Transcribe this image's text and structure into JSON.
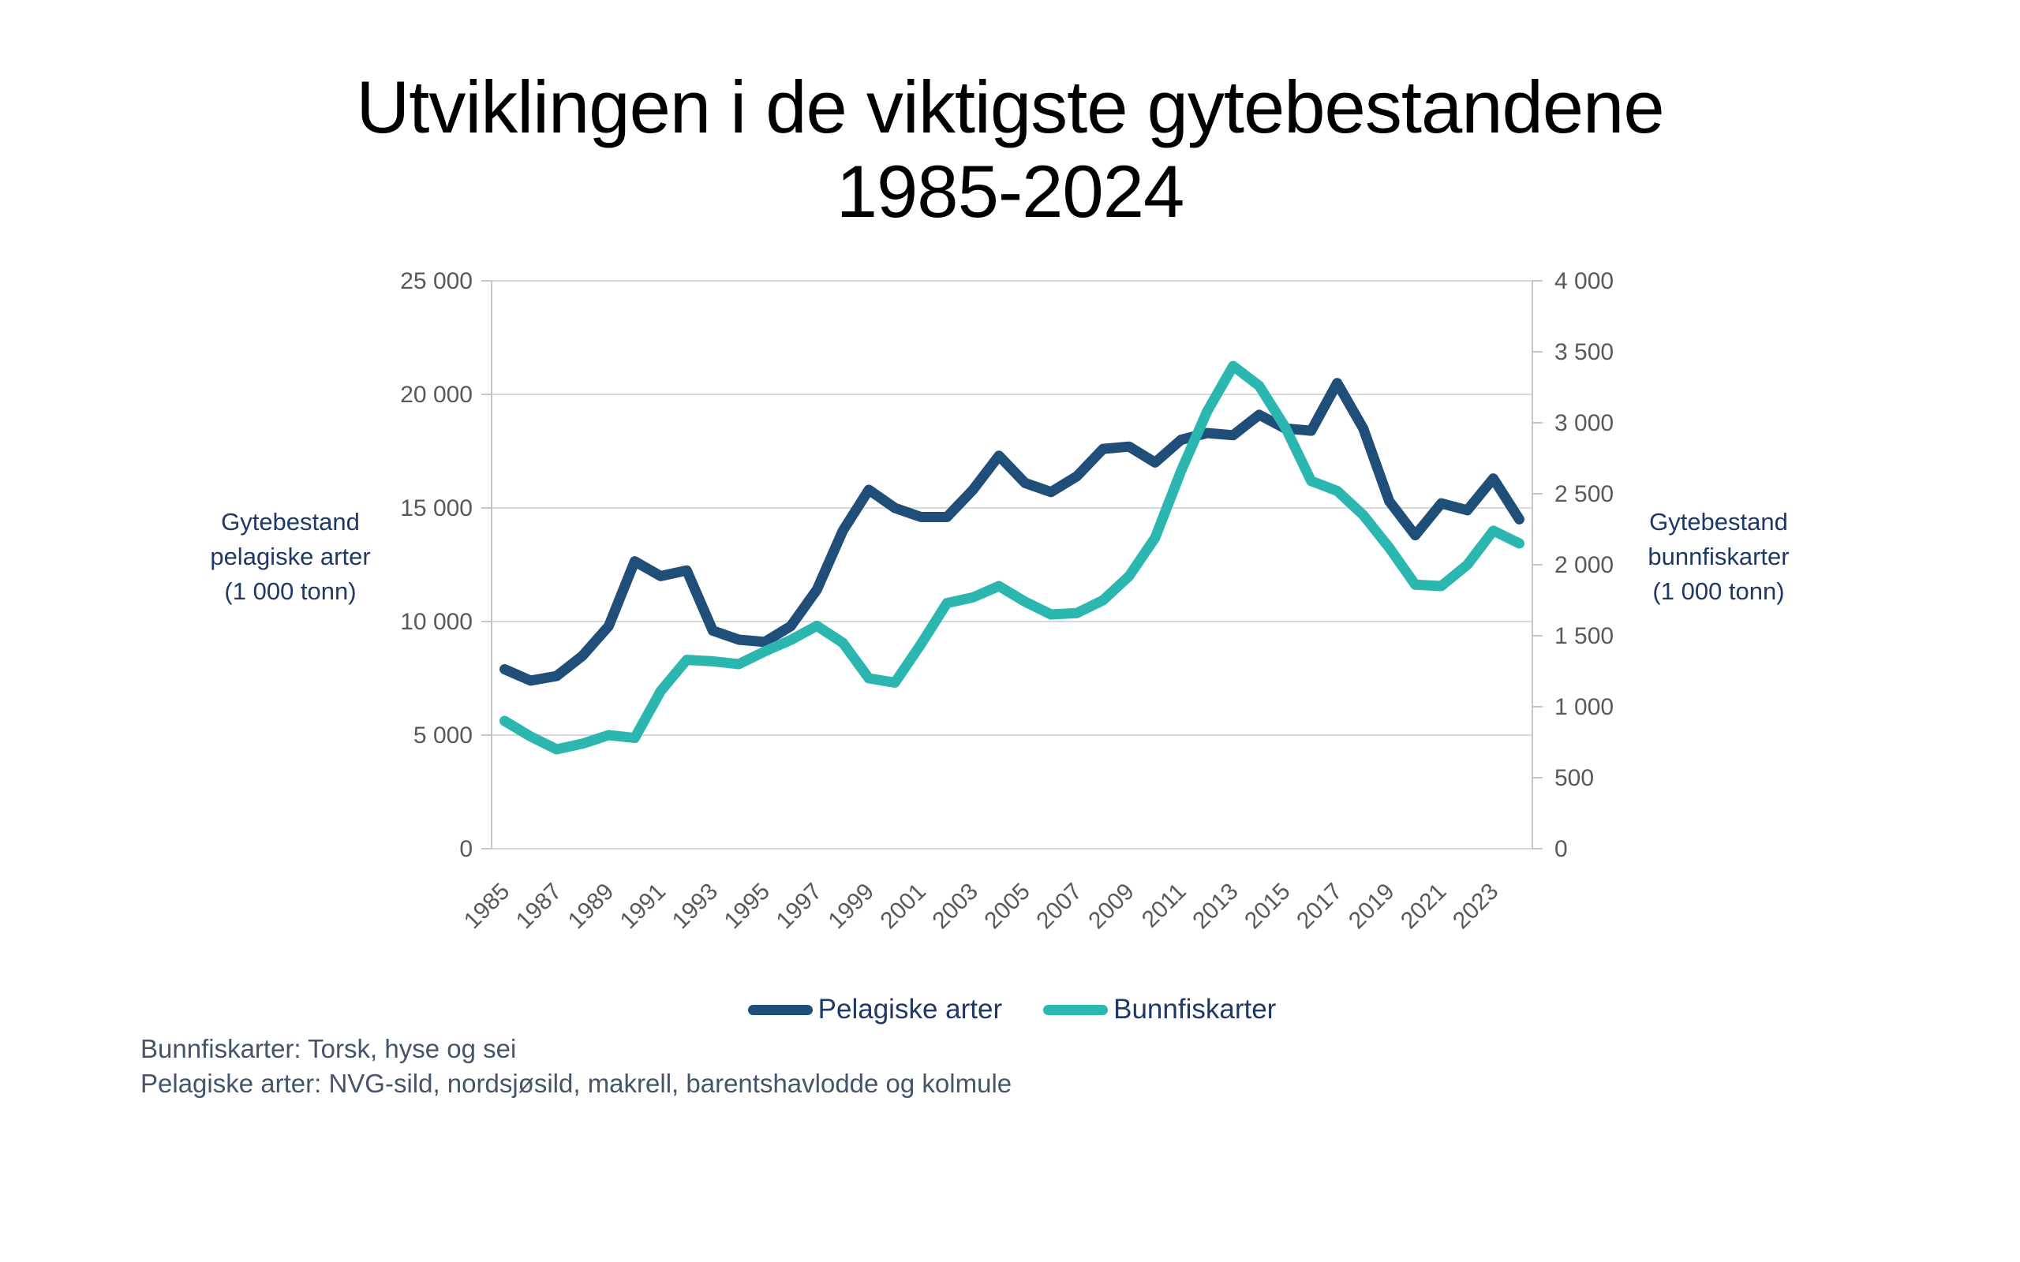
{
  "title": {
    "line1": "Utviklingen i de viktigste gytebestandene",
    "line2": "1985-2024"
  },
  "chart_data": {
    "type": "line",
    "x": [
      1985,
      1986,
      1987,
      1988,
      1989,
      1990,
      1991,
      1992,
      1993,
      1994,
      1995,
      1996,
      1997,
      1998,
      1999,
      2000,
      2001,
      2002,
      2003,
      2004,
      2005,
      2006,
      2007,
      2008,
      2009,
      2010,
      2011,
      2012,
      2013,
      2014,
      2015,
      2016,
      2017,
      2018,
      2019,
      2020,
      2021,
      2022,
      2023,
      2024
    ],
    "x_tick_labels": [
      "1985",
      "1987",
      "1989",
      "1991",
      "1993",
      "1995",
      "1997",
      "1999",
      "2001",
      "2003",
      "2005",
      "2007",
      "2009",
      "2011",
      "2013",
      "2015",
      "2017",
      "2019",
      "2021",
      "2023"
    ],
    "series": [
      {
        "name": "Pelagiske arter",
        "axis": "left",
        "color": "#1f4e79",
        "values": [
          7900,
          7400,
          7600,
          8500,
          9800,
          12650,
          12000,
          12250,
          9600,
          9200,
          9100,
          9800,
          11400,
          14000,
          15800,
          15000,
          14600,
          14600,
          15800,
          17300,
          16100,
          15700,
          16400,
          17600,
          17700,
          17000,
          18000,
          18300,
          18200,
          19100,
          18500,
          18400,
          20500,
          18500,
          15300,
          13800,
          15200,
          14900,
          16300,
          14500
        ]
      },
      {
        "name": "Bunnfiskarter",
        "axis": "right",
        "color": "#2bb7b0",
        "values": [
          900,
          790,
          700,
          740,
          800,
          780,
          1110,
          1330,
          1320,
          1300,
          1390,
          1470,
          1570,
          1450,
          1200,
          1170,
          1440,
          1730,
          1770,
          1850,
          1740,
          1650,
          1660,
          1750,
          1920,
          2190,
          2660,
          3080,
          3400,
          3260,
          2970,
          2590,
          2520,
          2350,
          2120,
          1860,
          1850,
          2000,
          2240,
          2150
        ]
      }
    ],
    "left_axis": {
      "title": "Gytebestand pelagiske arter (1 000 tonn)",
      "title_lines": [
        "Gytebestand",
        "pelagiske arter",
        "(1 000 tonn)"
      ],
      "min": 0,
      "max": 25000,
      "tick_step": 5000,
      "ticks": [
        0,
        5000,
        10000,
        15000,
        20000,
        25000
      ],
      "tick_labels": [
        "0",
        "5 000",
        "10 000",
        "15 000",
        "20 000",
        "25 000"
      ]
    },
    "right_axis": {
      "title": "Gytebestand bunnfiskarter (1 000 tonn)",
      "title_lines": [
        "Gytebestand",
        "bunnfiskarter",
        "(1 000 tonn)"
      ],
      "min": 0,
      "max": 4000,
      "tick_step": 500,
      "ticks": [
        0,
        500,
        1000,
        1500,
        2000,
        2500,
        3000,
        3500,
        4000
      ],
      "tick_labels": [
        "0",
        "500",
        "1 000",
        "1 500",
        "2 000",
        "2 500",
        "3 000",
        "3 500",
        "4 000"
      ]
    },
    "grid": true,
    "legend_position": "bottom",
    "colors": {
      "gridline": "#d9d9d9",
      "axis_line": "#c6c6c6",
      "tick_label": "#595959"
    }
  },
  "legend": {
    "items": [
      {
        "label": "Pelagiske arter",
        "color": "#1f4e79"
      },
      {
        "label": "Bunnfiskarter",
        "color": "#2bb7b0"
      }
    ]
  },
  "footnotes": {
    "line1": "Bunnfiskarter: Torsk, hyse og sei",
    "line2": "Pelagiske arter: NVG-sild, nordsjøsild, makrell, barentshavlodde og kolmule"
  }
}
